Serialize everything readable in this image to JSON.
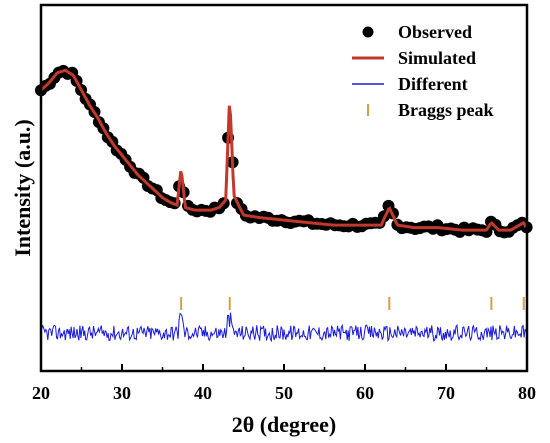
{
  "chart_data": {
    "type": "scatter",
    "xlabel": "2θ  (degree)",
    "ylabel": "Intensity  (a.u.)",
    "xlim": [
      20,
      80
    ],
    "x_ticks": [
      20,
      30,
      40,
      50,
      60,
      70,
      80
    ],
    "grid": false,
    "legend_position": "top-right",
    "legend": [
      {
        "label": "Observed",
        "marker": "dot",
        "color": "#000000"
      },
      {
        "label": "Simulated",
        "marker": "line",
        "color": "#c0392b"
      },
      {
        "label": "Different",
        "marker": "line",
        "color": "#1a1adb"
      },
      {
        "label": "Braggs peak",
        "marker": "tick",
        "color": "#d4a04a"
      }
    ],
    "bragg_peaks": [
      37.3,
      43.3,
      63.0,
      75.6,
      79.6
    ],
    "series": [
      {
        "name": "Observed",
        "color": "#000000",
        "points": [
          [
            20.0,
            0.72
          ],
          [
            21.0,
            0.75
          ],
          [
            22.0,
            0.79
          ],
          [
            23.0,
            0.8
          ],
          [
            24.0,
            0.78
          ],
          [
            25.0,
            0.72
          ],
          [
            26.0,
            0.66
          ],
          [
            27.0,
            0.61
          ],
          [
            28.0,
            0.55
          ],
          [
            29.0,
            0.5
          ],
          [
            30.0,
            0.46
          ],
          [
            31.0,
            0.42
          ],
          [
            32.0,
            0.38
          ],
          [
            33.0,
            0.35
          ],
          [
            34.0,
            0.32
          ],
          [
            35.0,
            0.29
          ],
          [
            36.0,
            0.27
          ],
          [
            36.8,
            0.26
          ],
          [
            37.3,
            0.42
          ],
          [
            37.8,
            0.25
          ],
          [
            39.0,
            0.24
          ],
          [
            40.0,
            0.24
          ],
          [
            41.0,
            0.24
          ],
          [
            42.0,
            0.25
          ],
          [
            42.8,
            0.28
          ],
          [
            43.3,
            0.71
          ],
          [
            43.8,
            0.3
          ],
          [
            45.0,
            0.22
          ],
          [
            47.0,
            0.21
          ],
          [
            50.0,
            0.2
          ],
          [
            53.0,
            0.19
          ],
          [
            56.0,
            0.18
          ],
          [
            59.0,
            0.18
          ],
          [
            62.0,
            0.18
          ],
          [
            63.0,
            0.26
          ],
          [
            64.0,
            0.18
          ],
          [
            66.0,
            0.17
          ],
          [
            69.0,
            0.17
          ],
          [
            72.0,
            0.16
          ],
          [
            75.0,
            0.16
          ],
          [
            75.6,
            0.19
          ],
          [
            76.5,
            0.16
          ],
          [
            78.0,
            0.16
          ],
          [
            79.6,
            0.19
          ],
          [
            80.0,
            0.16
          ]
        ]
      },
      {
        "name": "Simulated",
        "color": "#c0392b",
        "points": [
          [
            20.0,
            0.72
          ],
          [
            21.0,
            0.75
          ],
          [
            22.0,
            0.79
          ],
          [
            23.0,
            0.8
          ],
          [
            24.0,
            0.78
          ],
          [
            25.0,
            0.72
          ],
          [
            26.0,
            0.66
          ],
          [
            27.0,
            0.61
          ],
          [
            28.0,
            0.55
          ],
          [
            29.0,
            0.5
          ],
          [
            30.0,
            0.46
          ],
          [
            31.0,
            0.42
          ],
          [
            32.0,
            0.38
          ],
          [
            33.0,
            0.35
          ],
          [
            34.0,
            0.32
          ],
          [
            35.0,
            0.29
          ],
          [
            36.0,
            0.27
          ],
          [
            36.8,
            0.26
          ],
          [
            37.3,
            0.41
          ],
          [
            37.8,
            0.25
          ],
          [
            39.0,
            0.24
          ],
          [
            40.0,
            0.24
          ],
          [
            41.0,
            0.24
          ],
          [
            42.0,
            0.25
          ],
          [
            42.8,
            0.28
          ],
          [
            43.3,
            0.7
          ],
          [
            43.8,
            0.3
          ],
          [
            45.0,
            0.22
          ],
          [
            47.0,
            0.21
          ],
          [
            50.0,
            0.2
          ],
          [
            53.0,
            0.19
          ],
          [
            56.0,
            0.18
          ],
          [
            59.0,
            0.18
          ],
          [
            62.0,
            0.18
          ],
          [
            63.0,
            0.25
          ],
          [
            64.0,
            0.18
          ],
          [
            66.0,
            0.17
          ],
          [
            69.0,
            0.17
          ],
          [
            72.0,
            0.16
          ],
          [
            75.0,
            0.16
          ],
          [
            75.6,
            0.19
          ],
          [
            76.5,
            0.16
          ],
          [
            78.0,
            0.16
          ],
          [
            79.6,
            0.19
          ],
          [
            80.0,
            0.16
          ]
        ]
      },
      {
        "name": "Different",
        "color": "#1a1adb",
        "baseline": 0.0,
        "noise_amplitude": 0.03,
        "spikes": [
          [
            37.3,
            0.06
          ],
          [
            43.3,
            0.05
          ]
        ]
      }
    ]
  }
}
